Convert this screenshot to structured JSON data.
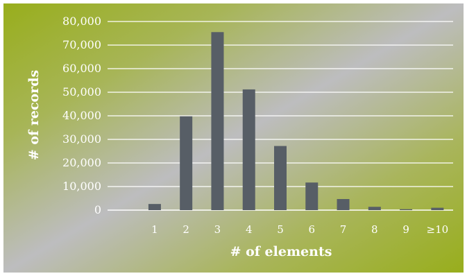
{
  "chart_data": {
    "type": "bar",
    "title": "",
    "xlabel": "# of elements",
    "ylabel": "# of records",
    "categories": [
      "1",
      "2",
      "3",
      "4",
      "5",
      "6",
      "7",
      "8",
      "9",
      "≥10"
    ],
    "values": [
      2600,
      39800,
      75500,
      51200,
      27200,
      11700,
      4700,
      1400,
      400,
      1000
    ],
    "ylim": [
      0,
      80000
    ],
    "yticks": [
      0,
      10000,
      20000,
      30000,
      40000,
      50000,
      60000,
      70000,
      80000
    ],
    "ytick_labels": [
      "0",
      "10,000",
      "20,000",
      "30,000",
      "40,000",
      "50,000",
      "60,000",
      "70,000",
      "80,000"
    ],
    "grid": true,
    "legend": "none",
    "colors": {
      "bar": "#575e66",
      "gridline": "#ffffff",
      "text": "#ffffff",
      "background_green": "#98ae1c",
      "background_gray": "#bdbdbf"
    }
  }
}
